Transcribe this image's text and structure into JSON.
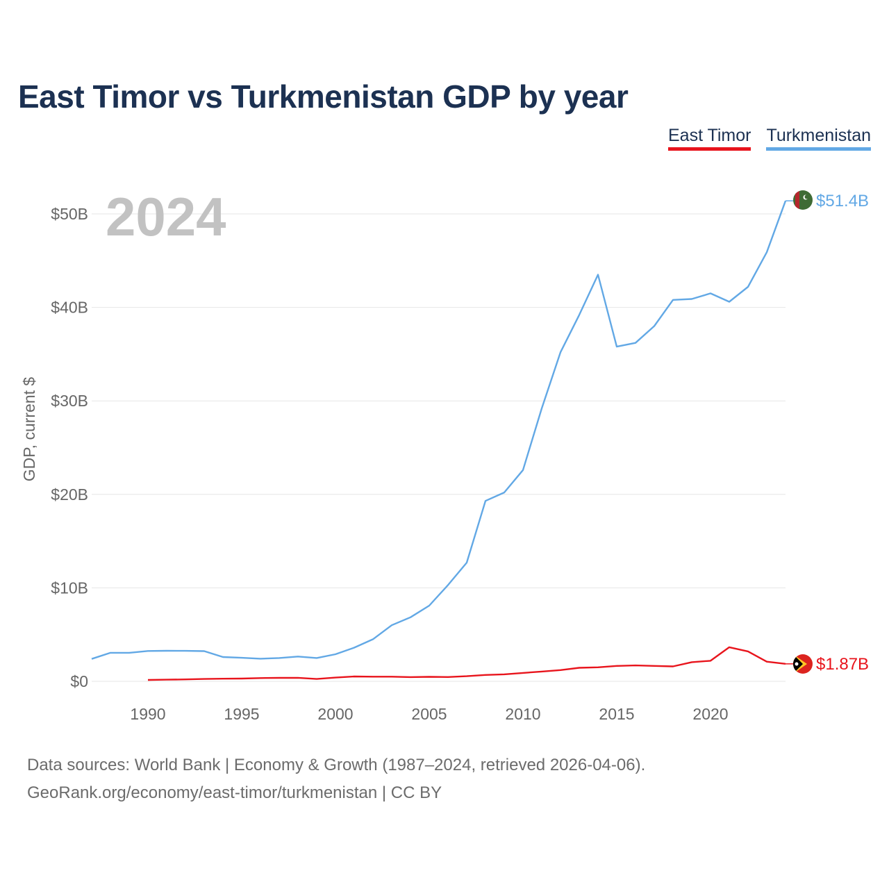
{
  "title": "East Timor vs Turkmenistan GDP by year",
  "legend": [
    {
      "name": "East Timor",
      "color": "#e8141c"
    },
    {
      "name": "Turkmenistan",
      "color": "#62a8e5"
    }
  ],
  "year_label": "2024",
  "footer": {
    "line1": "Data sources: World Bank | Economy & Growth (1987–2024, retrieved 2026-04-06).",
    "line2": "GeoRank.org/economy/east-timor/turkmenistan | CC BY"
  },
  "chart_data": {
    "type": "line",
    "title": "East Timor vs Turkmenistan GDP by year",
    "xlabel": "",
    "ylabel": "GDP, current $",
    "xlim": [
      1987,
      2024
    ],
    "ylim": [
      0,
      50000000000
    ],
    "x_ticks": [
      1990,
      1995,
      2000,
      2005,
      2010,
      2015,
      2020
    ],
    "x_tick_labels": [
      "1990",
      "1995",
      "2000",
      "2005",
      "2010",
      "2015",
      "2020"
    ],
    "y_ticks": [
      0,
      10000000000,
      20000000000,
      30000000000,
      40000000000,
      50000000000
    ],
    "y_tick_labels": [
      "$0",
      "$10B",
      "$20B",
      "$30B",
      "$40B",
      "$50B"
    ],
    "grid": true,
    "series": [
      {
        "name": "Turkmenistan",
        "color": "#62a8e5",
        "end_label": "$51.4B",
        "x": [
          1987,
          1988,
          1989,
          1990,
          1991,
          1992,
          1993,
          1994,
          1995,
          1996,
          1997,
          1998,
          1999,
          2000,
          2001,
          2002,
          2003,
          2004,
          2005,
          2006,
          2007,
          2008,
          2009,
          2010,
          2011,
          2012,
          2013,
          2014,
          2015,
          2016,
          2017,
          2018,
          2019,
          2020,
          2021,
          2022,
          2023,
          2024
        ],
        "values": [
          2400000000.0,
          3050000000.0,
          3050000000.0,
          3250000000.0,
          3270000000.0,
          3260000000.0,
          3230000000.0,
          2600000000.0,
          2520000000.0,
          2420000000.0,
          2500000000.0,
          2650000000.0,
          2500000000.0,
          2900000000.0,
          3600000000.0,
          4500000000.0,
          6000000000.0,
          6850000000.0,
          8100000000.0,
          10300000000.0,
          12700000000.0,
          19300000000.0,
          20200000000.0,
          22600000000.0,
          29200000000.0,
          35200000000.0,
          39200000000.0,
          43500000000.0,
          35800000000.0,
          36200000000.0,
          38000000000.0,
          40800000000.0,
          40900000000.0,
          41500000000.0,
          40600000000.0,
          42200000000.0,
          45900000000.0,
          51400000000.0
        ]
      },
      {
        "name": "East Timor",
        "color": "#e8141c",
        "end_label": "$1.87B",
        "x": [
          1990,
          1991,
          1992,
          1993,
          1994,
          1995,
          1996,
          1997,
          1998,
          1999,
          2000,
          2001,
          2002,
          2003,
          2004,
          2005,
          2006,
          2007,
          2008,
          2009,
          2010,
          2011,
          2012,
          2013,
          2014,
          2015,
          2016,
          2017,
          2018,
          2019,
          2020,
          2021,
          2022,
          2023,
          2024
        ],
        "values": [
          150000000.0,
          180000000.0,
          210000000.0,
          250000000.0,
          280000000.0,
          300000000.0,
          350000000.0,
          370000000.0,
          380000000.0,
          250000000.0,
          400000000.0,
          520000000.0,
          500000000.0,
          500000000.0,
          450000000.0,
          480000000.0,
          460000000.0,
          550000000.0,
          680000000.0,
          750000000.0,
          900000000.0,
          1050000000.0,
          1200000000.0,
          1450000000.0,
          1500000000.0,
          1650000000.0,
          1700000000.0,
          1650000000.0,
          1600000000.0,
          2050000000.0,
          2200000000.0,
          3650000000.0,
          3200000000.0,
          2100000000.0,
          1870000000.0
        ]
      }
    ]
  }
}
